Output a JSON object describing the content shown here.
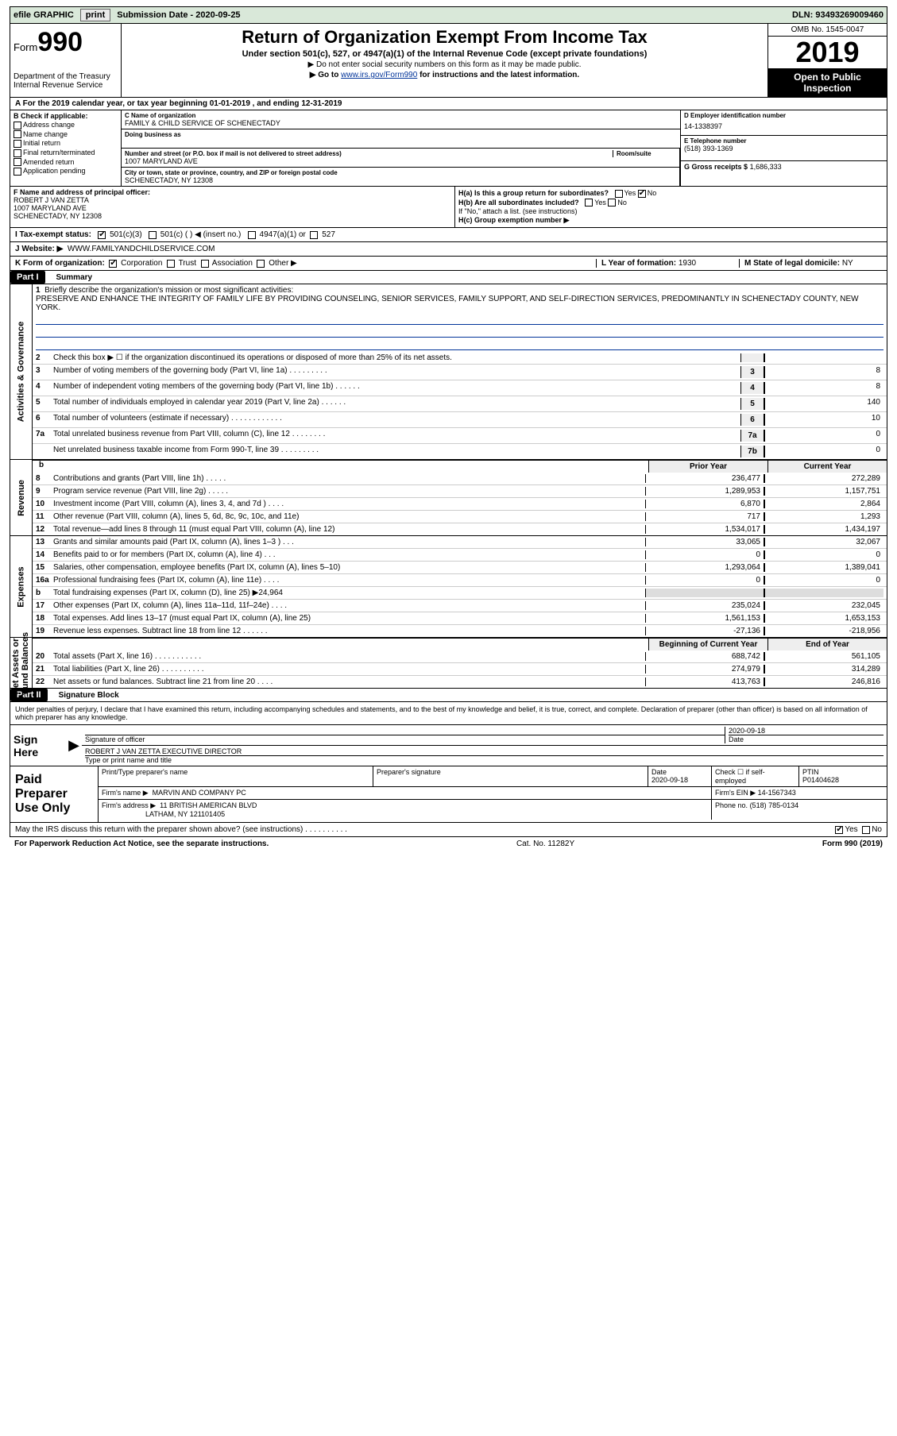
{
  "topbar": {
    "efile": "efile GRAPHIC",
    "print": "print",
    "subdate_lbl": "Submission Date - ",
    "subdate": "2020-09-25",
    "dln_lbl": "DLN: ",
    "dln": "93493269009460"
  },
  "header": {
    "form_word": "Form",
    "form_num": "990",
    "dept": "Department of the Treasury\nInternal Revenue Service",
    "title": "Return of Organization Exempt From Income Tax",
    "sub": "Under section 501(c), 527, or 4947(a)(1) of the Internal Revenue Code (except private foundations)",
    "note1": "▶ Do not enter social security numbers on this form as it may be made public.",
    "note2a": "▶ Go to ",
    "note2_link": "www.irs.gov/Form990",
    "note2b": " for instructions and the latest information.",
    "omb": "OMB No. 1545-0047",
    "year": "2019",
    "otp": "Open to Public\nInspection"
  },
  "period": "A For the 2019 calendar year, or tax year beginning 01-01-2019     , and ending 12-31-2019",
  "boxB": {
    "hdr": "B Check if applicable:",
    "opts": [
      "Address change",
      "Name change",
      "Initial return",
      "Final return/terminated",
      "Amended return",
      "Application pending"
    ]
  },
  "boxC": {
    "name_lbl": "C Name of organization",
    "name": "FAMILY & CHILD SERVICE OF SCHENECTADY",
    "dba_lbl": "Doing business as",
    "addr_lbl": "Number and street (or P.O. box if mail is not delivered to street address)",
    "room_lbl": "Room/suite",
    "addr": "1007 MARYLAND AVE",
    "city_lbl": "City or town, state or province, country, and ZIP or foreign postal code",
    "city": "SCHENECTADY, NY  12308"
  },
  "boxD": {
    "lbl": "D Employer identification number",
    "val": "14-1338397"
  },
  "boxE": {
    "lbl": "E Telephone number",
    "val": "(518) 393-1369"
  },
  "boxG": {
    "lbl": "G Gross receipts $",
    "val": "1,686,333"
  },
  "boxF": {
    "lbl": "F  Name and address of principal officer:",
    "name": "ROBERT J VAN ZETTA",
    "addr1": "1007 MARYLAND AVE",
    "addr2": "SCHENECTADY, NY  12308"
  },
  "boxH": {
    "a": "H(a)  Is this a group return for subordinates?",
    "b": "H(b)  Are all subordinates included?",
    "bnote": "If \"No,\" attach a list. (see instructions)",
    "c": "H(c)  Group exemption number ▶"
  },
  "taxexempt": {
    "lbl": "I   Tax-exempt status:",
    "o1": "501(c)(3)",
    "o2": "501(c) (   ) ◀ (insert no.)",
    "o3": "4947(a)(1) or",
    "o4": "527"
  },
  "website": {
    "lbl": "J   Website: ▶",
    "val": "WWW.FAMILYANDCHILDSERVICE.COM"
  },
  "korg": {
    "klab": "K Form of organization:",
    "kopts": [
      "Corporation",
      "Trust",
      "Association",
      "Other ▶"
    ],
    "l_lbl": "L Year of formation:",
    "l_val": "1930",
    "m_lbl": "M State of legal domicile:",
    "m_val": "NY"
  },
  "part1": {
    "tag": "Part I",
    "title": "Summary"
  },
  "mission": {
    "num": "1",
    "lbl": "Briefly describe the organization's mission or most significant activities:",
    "text": "PRESERVE AND ENHANCE THE INTEGRITY OF FAMILY LIFE BY PROVIDING COUNSELING, SENIOR SERVICES, FAMILY SUPPORT, AND SELF-DIRECTION SERVICES, PREDOMINANTLY IN SCHENECTADY COUNTY, NEW YORK."
  },
  "ag_lines": [
    {
      "n": "2",
      "t": "Check this box ▶ ☐  if the organization discontinued its operations or disposed of more than 25% of its net assets.",
      "box": "",
      "v": ""
    },
    {
      "n": "3",
      "t": "Number of voting members of the governing body (Part VI, line 1a)   .    .    .    .    .    .    .    .    .",
      "box": "3",
      "v": "8"
    },
    {
      "n": "4",
      "t": "Number of independent voting members of the governing body (Part VI, line 1b)   .    .    .    .    .    .",
      "box": "4",
      "v": "8"
    },
    {
      "n": "5",
      "t": "Total number of individuals employed in calendar year 2019 (Part V, line 2a)   .    .    .    .    .    .",
      "box": "5",
      "v": "140"
    },
    {
      "n": "6",
      "t": "Total number of volunteers (estimate if necessary)   .    .    .    .    .    .    .    .    .    .    .    .",
      "box": "6",
      "v": "10"
    },
    {
      "n": "7a",
      "t": "Total unrelated business revenue from Part VIII, column (C), line 12   .    .    .    .    .    .    .    .",
      "box": "7a",
      "v": "0"
    },
    {
      "n": "",
      "t": "Net unrelated business taxable income from Form 990-T, line 39   .    .    .    .    .    .    .    .    .",
      "box": "7b",
      "v": "0"
    }
  ],
  "pycy_hdr": {
    "py": "Prior Year",
    "cy": "Current Year"
  },
  "rev_lines": [
    {
      "n": "8",
      "t": "Contributions and grants (Part VIII, line 1h)   .    .    .    .    .",
      "py": "236,477",
      "cy": "272,289"
    },
    {
      "n": "9",
      "t": "Program service revenue (Part VIII, line 2g)   .    .    .    .    .",
      "py": "1,289,953",
      "cy": "1,157,751"
    },
    {
      "n": "10",
      "t": "Investment income (Part VIII, column (A), lines 3, 4, and 7d )   .    .    .    .",
      "py": "6,870",
      "cy": "2,864"
    },
    {
      "n": "11",
      "t": "Other revenue (Part VIII, column (A), lines 5, 6d, 8c, 9c, 10c, and 11e)",
      "py": "717",
      "cy": "1,293"
    },
    {
      "n": "12",
      "t": "Total revenue—add lines 8 through 11 (must equal Part VIII, column (A), line 12)",
      "py": "1,534,017",
      "cy": "1,434,197"
    }
  ],
  "exp_lines": [
    {
      "n": "13",
      "t": "Grants and similar amounts paid (Part IX, column (A), lines 1–3 )   .    .    .",
      "py": "33,065",
      "cy": "32,067"
    },
    {
      "n": "14",
      "t": "Benefits paid to or for members (Part IX, column (A), line 4)   .    .    .",
      "py": "0",
      "cy": "0"
    },
    {
      "n": "15",
      "t": "Salaries, other compensation, employee benefits (Part IX, column (A), lines 5–10)",
      "py": "1,293,064",
      "cy": "1,389,041"
    },
    {
      "n": "16a",
      "t": "Professional fundraising fees (Part IX, column (A), line 11e)   .    .    .    .",
      "py": "0",
      "cy": "0"
    },
    {
      "n": "b",
      "t": "Total fundraising expenses (Part IX, column (D), line 25) ▶24,964",
      "py": "",
      "cy": "",
      "grey": true
    },
    {
      "n": "17",
      "t": "Other expenses (Part IX, column (A), lines 11a–11d, 11f–24e)   .    .    .    .",
      "py": "235,024",
      "cy": "232,045"
    },
    {
      "n": "18",
      "t": "Total expenses. Add lines 13–17 (must equal Part IX, column (A), line 25)",
      "py": "1,561,153",
      "cy": "1,653,153"
    },
    {
      "n": "19",
      "t": "Revenue less expenses. Subtract line 18 from line 12   .    .    .    .    .    .",
      "py": "-27,136",
      "cy": "-218,956"
    }
  ],
  "na_hdr": {
    "py": "Beginning of Current Year",
    "cy": "End of Year"
  },
  "na_lines": [
    {
      "n": "20",
      "t": "Total assets (Part X, line 16)   .    .    .    .    .    .    .    .    .    .    .",
      "py": "688,742",
      "cy": "561,105"
    },
    {
      "n": "21",
      "t": "Total liabilities (Part X, line 26)   .    .    .    .    .    .    .    .    .    .",
      "py": "274,979",
      "cy": "314,289"
    },
    {
      "n": "22",
      "t": "Net assets or fund balances. Subtract line 21 from line 20   .    .    .    .",
      "py": "413,763",
      "cy": "246,816"
    }
  ],
  "part2": {
    "tag": "Part II",
    "title": "Signature Block"
  },
  "sig_note": "Under penalties of perjury, I declare that I have examined this return, including accompanying schedules and statements, and to the best of my knowledge and belief, it is true, correct, and complete. Declaration of preparer (other than officer) is based on all information of which preparer has any knowledge.",
  "sign": {
    "here": "Sign Here",
    "sig_lbl": "Signature of officer",
    "date_lbl": "Date",
    "date": "2020-09-18",
    "name": "ROBERT J VAN ZETTA  EXECUTIVE DIRECTOR",
    "name_lbl": "Type or print name and title"
  },
  "prep": {
    "lbl": "Paid Preparer Use Only",
    "r1": {
      "c1": "Print/Type preparer's name",
      "c2": "Preparer's signature",
      "c3_lbl": "Date",
      "c3": "2020-09-18",
      "c4": "Check ☐ if self-employed",
      "c5_lbl": "PTIN",
      "c5": "P01404628"
    },
    "r2": {
      "lbl": "Firm's name      ▶",
      "val": "MARVIN AND COMPANY PC",
      "ein_lbl": "Firm's EIN ▶",
      "ein": "14-1567343"
    },
    "r3": {
      "lbl": "Firm's address  ▶",
      "val1": "11 BRITISH AMERICAN BLVD",
      "val2": "LATHAM, NY  121101405",
      "ph_lbl": "Phone no.",
      "ph": "(518) 785-0134"
    }
  },
  "discuss": "May the IRS discuss this return with the preparer shown above? (see instructions)   .    .    .    .    .    .    .    .    .    .",
  "footer": {
    "left": "For Paperwork Reduction Act Notice, see the separate instructions.",
    "mid": "Cat. No. 11282Y",
    "right": "Form 990 (2019)"
  },
  "labels": {
    "yes": "Yes",
    "no": "No",
    "b": "b"
  }
}
